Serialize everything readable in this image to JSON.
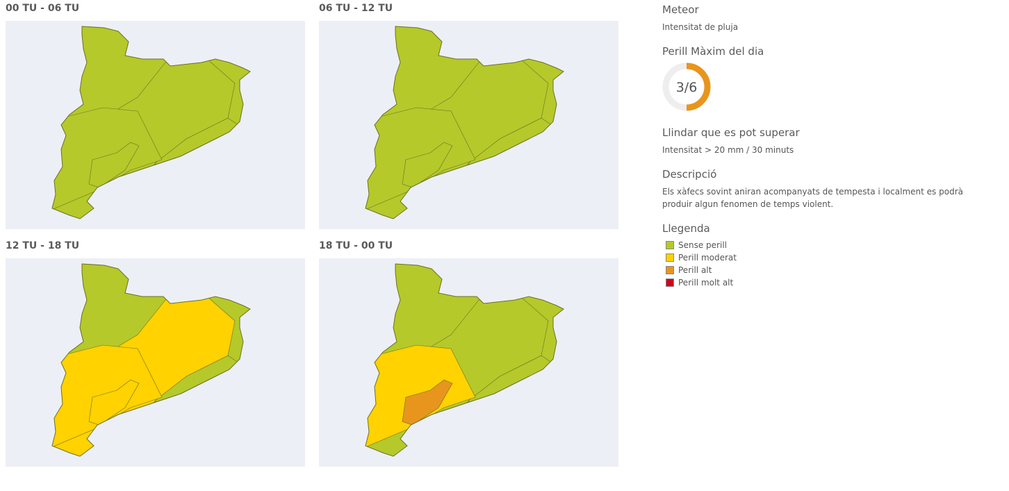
{
  "panels": [
    {
      "title": "00 TU - 06 TU",
      "zone_colors": [
        "#b5c92a",
        "#b5c92a",
        "#b5c92a",
        "#b5c92a",
        "#b5c92a"
      ]
    },
    {
      "title": "06 TU - 12 TU",
      "zone_colors": [
        "#b5c92a",
        "#b5c92a",
        "#b5c92a",
        "#b5c92a",
        "#b5c92a"
      ]
    },
    {
      "title": "12 TU - 18 TU",
      "zone_colors": [
        "#b5c92a",
        "#ffd200",
        "#b5c92a",
        "#ffd200",
        "#ffd200"
      ]
    },
    {
      "title": "18 TU - 00 TU",
      "zone_colors": [
        "#b5c92a",
        "#b5c92a",
        "#b5c92a",
        "#ffd200",
        "#e8951d"
      ]
    }
  ],
  "side": {
    "meteor_title": "Meteor",
    "meteor_text": "Intensitat de pluja",
    "max_title": "Perill Màxim del dia",
    "gauge": {
      "value": 3,
      "max": 6,
      "label": "3/6",
      "color": "#e8951d"
    },
    "threshold_title": "Llindar que es pot superar",
    "threshold_text": "Intensitat > 20 mm / 30 minuts",
    "description_title": "Descripció",
    "description_text": "Els xàfecs sovint aniran acompanyats de tempesta i localment es podrà produir algun fenomen de temps violent.",
    "legend_title": "Llegenda",
    "legend": [
      {
        "label": "Sense perill",
        "color": "#b5c92a"
      },
      {
        "label": "Perill moderat",
        "color": "#ffd200"
      },
      {
        "label": "Perill alt",
        "color": "#e8951d"
      },
      {
        "label": "Perill molt alt",
        "color": "#d0021b"
      }
    ]
  }
}
